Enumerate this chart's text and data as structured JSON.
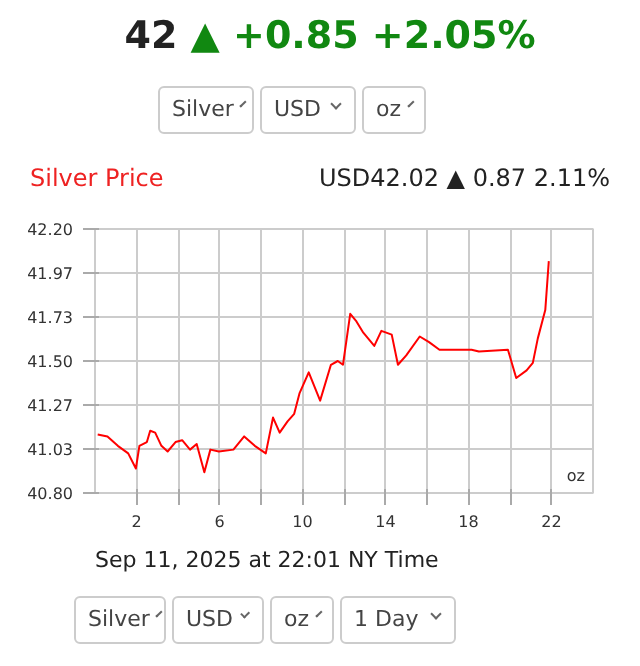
{
  "chart_data": {
    "type": "line",
    "title": "Silver Price",
    "subtitle": "USD42.02 ▲ 0.87 2.11%",
    "annotations": [
      "42",
      "▲",
      "+0.85",
      "+2.05%",
      "Silver",
      "USD",
      "oz",
      "oz",
      "Sep 11, 2025 at 22:01 NY Time",
      "Silver",
      "USD",
      "oz",
      "1 Day"
    ],
    "x": [
      0.13,
      0.6,
      1.1,
      1.6,
      1.97,
      2.14,
      2.5,
      2.66,
      2.9,
      3.2,
      3.5,
      3.88,
      4.2,
      4.58,
      4.9,
      5.27,
      5.56,
      5.97,
      6.67,
      7.19,
      7.7,
      8.23,
      8.58,
      8.9,
      9.28,
      9.6,
      9.86,
      10.3,
      10.85,
      11.37,
      11.7,
      11.95,
      12.3,
      12.6,
      12.93,
      13.46,
      13.8,
      14.3,
      14.6,
      15.0,
      15.65,
      16.1,
      16.6,
      18.15,
      18.5,
      19.9,
      20.3,
      20.8,
      21.1,
      21.34,
      21.7,
      21.87
    ],
    "series": [
      {
        "color": "#ff0000",
        "values": [
          41.11,
          41.1,
          41.05,
          41.01,
          40.93,
          41.05,
          41.07,
          41.13,
          41.12,
          41.05,
          41.02,
          41.07,
          41.08,
          41.03,
          41.06,
          40.91,
          41.03,
          41.02,
          41.03,
          41.1,
          41.05,
          41.01,
          41.2,
          41.12,
          41.18,
          41.22,
          41.33,
          41.44,
          41.29,
          41.48,
          41.5,
          41.48,
          41.75,
          41.71,
          41.65,
          41.58,
          41.66,
          41.64,
          41.48,
          41.53,
          41.63,
          41.6,
          41.56,
          41.56,
          41.55,
          41.56,
          41.41,
          41.45,
          41.49,
          41.62,
          41.77,
          42.03
        ]
      }
    ],
    "xlim": [
      0,
      24
    ],
    "ylim": [
      40.8,
      42.2
    ],
    "xticks": [
      {
        "value": 2,
        "label": "2"
      },
      {
        "value": 4,
        "label": null
      },
      {
        "value": 6,
        "label": "6"
      },
      {
        "value": 8,
        "label": null
      },
      {
        "value": 10,
        "label": "10"
      },
      {
        "value": 12,
        "label": null
      },
      {
        "value": 14,
        "label": "14"
      },
      {
        "value": 16,
        "label": null
      },
      {
        "value": 18,
        "label": "18"
      },
      {
        "value": 20,
        "label": null
      },
      {
        "value": 22,
        "label": "22"
      }
    ],
    "yticks": [
      {
        "value": 40.8,
        "label": "40.80"
      },
      {
        "value": 41.0333,
        "label": "41.03"
      },
      {
        "value": 41.2667,
        "label": "41.27"
      },
      {
        "value": 41.5,
        "label": "41.50"
      },
      {
        "value": 41.7333,
        "label": "41.73"
      },
      {
        "value": 41.9667,
        "label": "41.97"
      },
      {
        "value": 42.2,
        "label": "42.20"
      }
    ],
    "grid": true
  }
}
